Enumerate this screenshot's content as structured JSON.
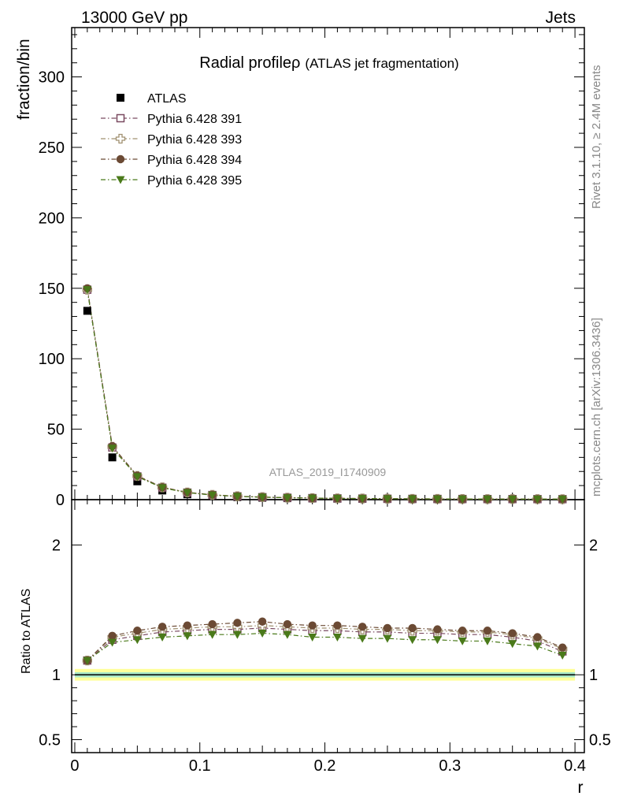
{
  "header": {
    "left": "13000 GeV pp",
    "right": "Jets"
  },
  "title": {
    "main": "Radial profile",
    "symbol": "ρ",
    "sub": "(ATLAS jet fragmentation)"
  },
  "analysis_id": "ATLAS_2019_I1740909",
  "side_labels": {
    "rivet": "Rivet 3.1.10, ≥ 2.4M events",
    "mcplots": "mcplots.cern.ch [arXiv:1306.3436]"
  },
  "legend": [
    {
      "label": "ATLAS",
      "marker": "filled-square",
      "color": "#000000"
    },
    {
      "label": "Pythia 6.428 391",
      "marker": "open-square",
      "color": "#7a4a60"
    },
    {
      "label": "Pythia 6.428 393",
      "marker": "open-cross",
      "color": "#a09070"
    },
    {
      "label": "Pythia 6.428 394",
      "marker": "filled-circle",
      "color": "#6b4a34"
    },
    {
      "label": "Pythia 6.428 395",
      "marker": "filled-triangle-down",
      "color": "#4a7a1a"
    }
  ],
  "chart_data": [
    {
      "type": "scatter",
      "panel": "main",
      "ylabel": "fraction/bin",
      "ylim": [
        0,
        335
      ],
      "yticks": [
        "50",
        "100",
        "150",
        "200",
        "250",
        "300"
      ],
      "x": [
        0.01,
        0.03,
        0.05,
        0.07,
        0.09,
        0.11,
        0.13,
        0.15,
        0.17,
        0.19,
        0.21,
        0.23,
        0.25,
        0.27,
        0.29,
        0.31,
        0.33,
        0.35,
        0.37,
        0.39
      ],
      "series": [
        {
          "name": "ATLAS",
          "values": [
            134,
            30,
            13,
            6.5,
            3.8,
            2.5,
            1.8,
            1.35,
            1.05,
            0.85,
            0.7,
            0.6,
            0.5,
            0.44,
            0.4,
            0.36,
            0.33,
            0.31,
            0.3,
            0.3
          ]
        },
        {
          "name": "Pythia 6.428 391",
          "values": [
            149,
            37,
            16.5,
            8.5,
            5.0,
            3.3,
            2.35,
            1.77,
            1.38,
            1.1,
            0.9,
            0.78,
            0.65,
            0.57,
            0.52,
            0.47,
            0.43,
            0.4,
            0.38,
            0.35
          ]
        },
        {
          "name": "Pythia 6.428 393",
          "values": [
            149,
            37.5,
            16.8,
            8.7,
            5.1,
            3.4,
            2.4,
            1.8,
            1.4,
            1.12,
            0.92,
            0.79,
            0.66,
            0.58,
            0.53,
            0.48,
            0.44,
            0.41,
            0.39,
            0.36
          ]
        },
        {
          "name": "Pythia 6.428 394",
          "values": [
            150,
            38,
            17,
            8.8,
            5.2,
            3.45,
            2.45,
            1.83,
            1.42,
            1.14,
            0.93,
            0.8,
            0.67,
            0.59,
            0.54,
            0.48,
            0.44,
            0.41,
            0.39,
            0.36
          ]
        },
        {
          "name": "Pythia 6.428 395",
          "values": [
            149,
            36.5,
            16.3,
            8.4,
            4.95,
            3.25,
            2.3,
            1.74,
            1.35,
            1.08,
            0.88,
            0.76,
            0.63,
            0.55,
            0.5,
            0.45,
            0.41,
            0.38,
            0.36,
            0.34
          ]
        }
      ]
    },
    {
      "type": "scatter",
      "panel": "ratio",
      "ylabel": "Ratio to ATLAS",
      "xlabel": "r",
      "ylim": [
        0.4,
        2.35
      ],
      "yticks": [
        "0.5",
        "1",
        "2"
      ],
      "xlim": [
        -0.0025,
        0.4075
      ],
      "xticks": [
        "0",
        "0.1",
        "0.2",
        "0.3",
        "0.4"
      ],
      "x": [
        0.01,
        0.03,
        0.05,
        0.07,
        0.09,
        0.11,
        0.13,
        0.15,
        0.17,
        0.19,
        0.21,
        0.23,
        0.25,
        0.27,
        0.29,
        0.31,
        0.33,
        0.35,
        0.37,
        0.39
      ],
      "reference_band": {
        "inner": 0.02,
        "outer": 0.045,
        "inner_color": "#a8e8c8",
        "outer_color": "#ffff99"
      },
      "series": [
        {
          "name": "Pythia 6.428 391",
          "values": [
            1.11,
            1.27,
            1.3,
            1.33,
            1.34,
            1.35,
            1.35,
            1.36,
            1.35,
            1.34,
            1.34,
            1.33,
            1.33,
            1.32,
            1.32,
            1.31,
            1.31,
            1.29,
            1.26,
            1.18
          ]
        },
        {
          "name": "Pythia 6.428 393",
          "values": [
            1.11,
            1.29,
            1.32,
            1.35,
            1.36,
            1.37,
            1.37,
            1.38,
            1.37,
            1.36,
            1.36,
            1.35,
            1.35,
            1.34,
            1.34,
            1.33,
            1.33,
            1.31,
            1.28,
            1.2
          ]
        },
        {
          "name": "Pythia 6.428 394",
          "values": [
            1.11,
            1.3,
            1.34,
            1.37,
            1.38,
            1.39,
            1.4,
            1.41,
            1.39,
            1.38,
            1.38,
            1.37,
            1.36,
            1.36,
            1.35,
            1.34,
            1.34,
            1.32,
            1.29,
            1.21
          ]
        },
        {
          "name": "Pythia 6.428 395",
          "values": [
            1.11,
            1.25,
            1.27,
            1.29,
            1.3,
            1.31,
            1.31,
            1.32,
            1.31,
            1.29,
            1.29,
            1.28,
            1.28,
            1.27,
            1.27,
            1.26,
            1.26,
            1.24,
            1.22,
            1.15
          ]
        }
      ]
    }
  ]
}
